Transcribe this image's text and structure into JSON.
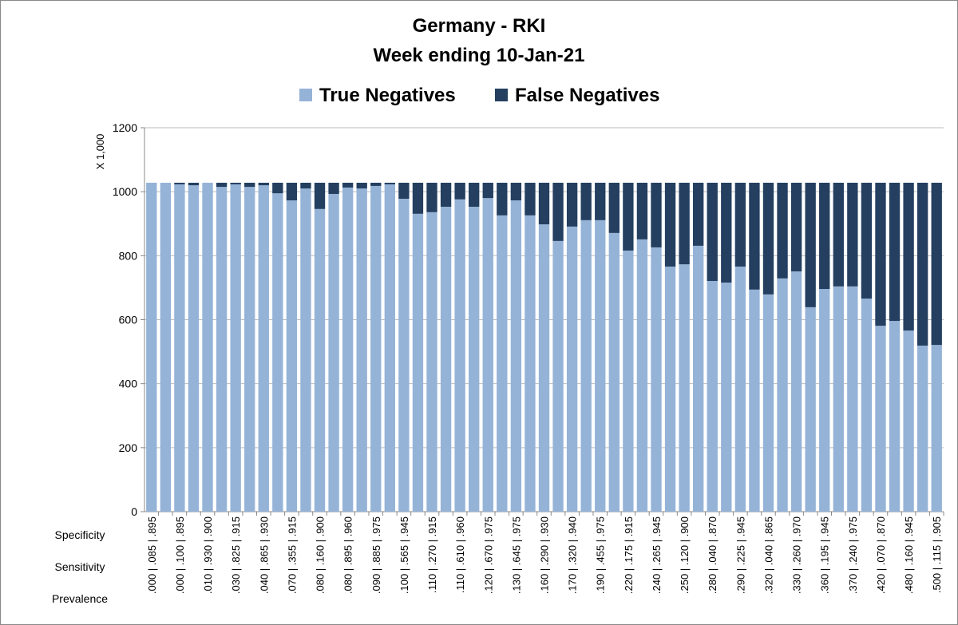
{
  "chart_data": {
    "type": "stacked-bar",
    "title": "Germany - RKI",
    "subtitle": "Week ending 10-Jan-21",
    "y_label": "X 1,000",
    "row_labels": [
      "Specificity",
      "Sensitivity",
      "Prevalence"
    ],
    "categories": [
      ".000 | .085 | .895",
      null,
      ".000 | .100 | .895",
      null,
      ".010 | .930 | .900",
      null,
      ".030 | .825 | .915",
      null,
      ".040 | .865 | .930",
      null,
      ".070 | .355 | .915",
      null,
      ".080 | .160 | .900",
      null,
      ".080 | .895 | .960",
      null,
      ".090 | .885 | .975",
      null,
      ".100 | .565 | .945",
      null,
      ".110 | .270 | .915",
      null,
      ".110 | .610 | .960",
      null,
      ".120 | .670 | .975",
      null,
      ".130 | .645 | .975",
      null,
      ".160 | .290 | .930",
      null,
      ".170 | .320 | .940",
      null,
      ".190 | .455 | .975",
      null,
      ".220 | .175 | .915",
      null,
      ".240 | .265 | .945",
      null,
      ".250 | .120 | .900",
      null,
      ".280 | .040 | .870",
      null,
      ".290 | .225 | .945",
      null,
      ".320 | .040 | .865",
      null,
      ".330 | .260 | .970",
      null,
      ".360 | .195 | .945",
      null,
      ".370 | .240 | .975",
      null,
      ".420 | .070 | .870",
      null,
      ".480 | .160 | .945",
      null,
      ".500 | .115 | .905"
    ],
    "series": [
      {
        "name": "True Negatives",
        "color": "#95b3d7",
        "values": [
          1028,
          1028,
          1023,
          1020,
          1028,
          1015,
          1023,
          1015,
          1020,
          995,
          973,
          1010,
          946,
          993,
          1013,
          1010,
          1018,
          1023,
          978,
          931,
          936,
          953,
          976,
          953,
          980,
          926,
          973,
          926,
          898,
          846,
          891,
          911,
          911,
          871,
          816,
          851,
          826,
          766,
          773,
          831,
          721,
          716,
          766,
          694,
          679,
          729,
          751,
          639,
          696,
          704,
          704,
          666,
          581,
          596,
          566,
          519,
          521
        ]
      },
      {
        "name": "False Negatives",
        "color": "#243f60",
        "values": [
          0,
          0,
          5,
          8,
          0,
          13,
          5,
          13,
          8,
          33,
          55,
          18,
          82,
          35,
          15,
          18,
          10,
          5,
          50,
          97,
          92,
          75,
          52,
          75,
          48,
          102,
          55,
          102,
          130,
          182,
          137,
          117,
          117,
          157,
          212,
          177,
          202,
          262,
          255,
          197,
          307,
          312,
          262,
          334,
          349,
          299,
          277,
          389,
          332,
          324,
          324,
          362,
          447,
          432,
          462,
          509,
          507
        ]
      }
    ],
    "ylim": [
      0,
      1200
    ],
    "yticks": [
      0,
      200,
      400,
      600,
      800,
      1000,
      1200
    ],
    "grid": true
  }
}
